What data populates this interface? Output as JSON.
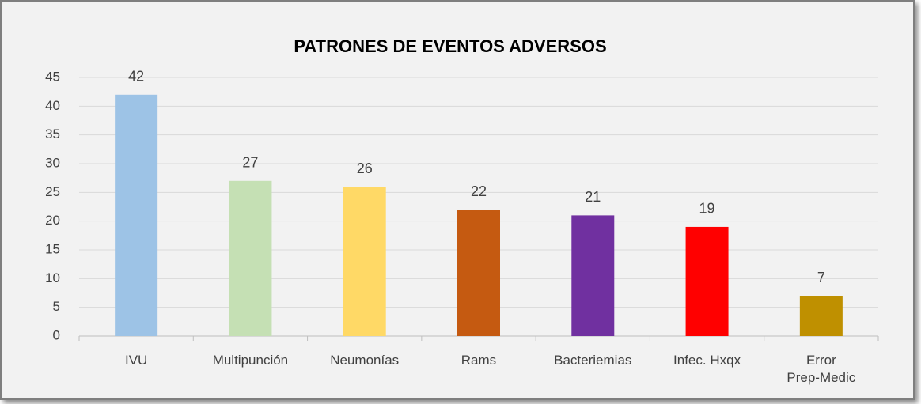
{
  "chart_data": {
    "type": "bar",
    "title": "PATRONES DE EVENTOS ADVERSOS",
    "categories": [
      "IVU",
      "Multipunción",
      "Neumonías",
      "Rams",
      "Bacteriemias",
      "Infec. Hxqx",
      "Error\nPrep-Medic"
    ],
    "values": [
      42,
      27,
      26,
      22,
      21,
      19,
      7
    ],
    "colors": [
      "#9dc3e6",
      "#c5e0b4",
      "#ffd966",
      "#c55a11",
      "#7030a0",
      "#ff0000",
      "#bf9000"
    ],
    "ylim": [
      0,
      45
    ],
    "yticks": [
      0,
      5,
      10,
      15,
      20,
      25,
      30,
      35,
      40,
      45
    ],
    "grid": true
  }
}
